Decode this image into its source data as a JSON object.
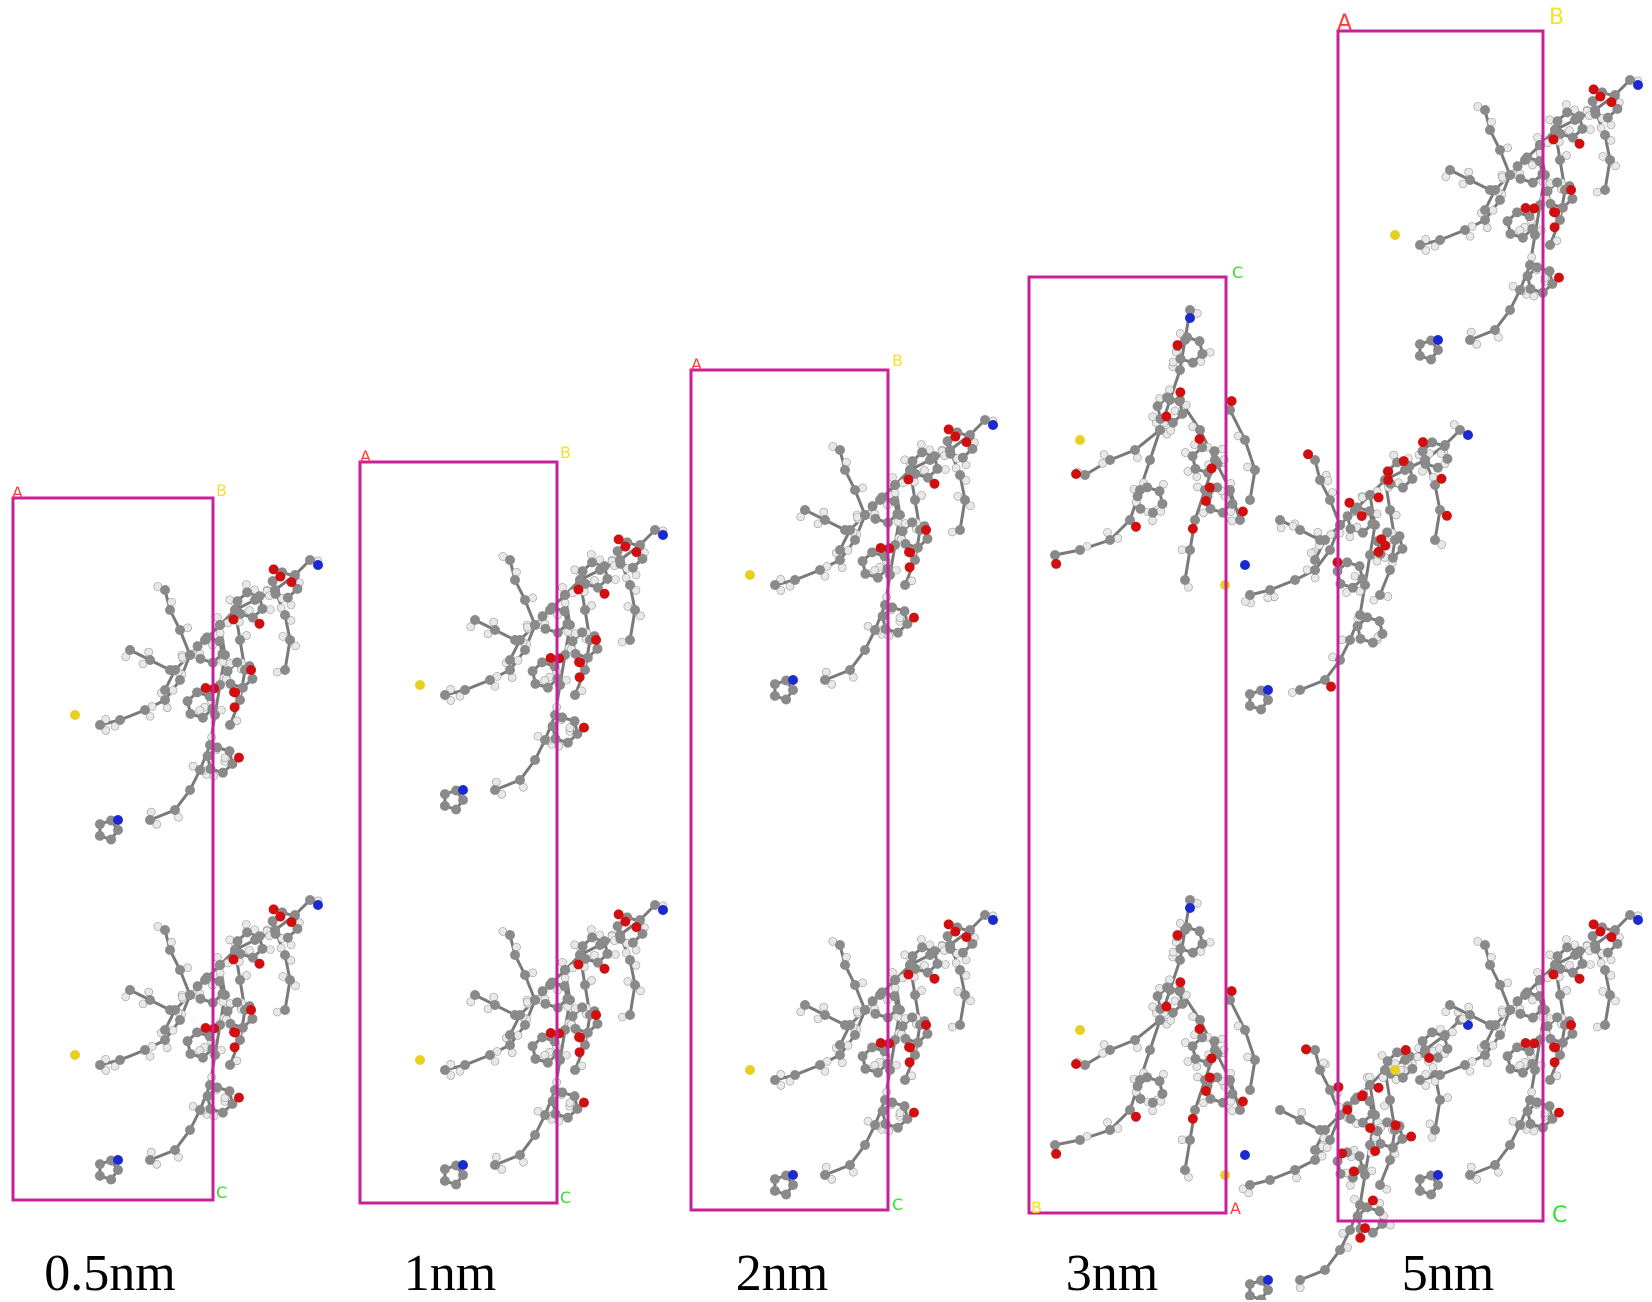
{
  "figure": {
    "panels": [
      {
        "label": "0.5nm",
        "corner_labels": {
          "top_left": "A",
          "top_right": "B",
          "bottom_right": "C"
        },
        "molecule_copies": 2
      },
      {
        "label": "1nm",
        "corner_labels": {
          "top_left": "A",
          "top_right": "B",
          "bottom_right": "C"
        },
        "molecule_copies": 2
      },
      {
        "label": "2nm",
        "corner_labels": {
          "top_left": "A",
          "top_right": "B",
          "bottom_right": "C"
        },
        "molecule_copies": 2
      },
      {
        "label": "3nm",
        "corner_labels": {
          "top_right": "C",
          "bottom_left": "B",
          "bottom_right": "A"
        },
        "molecule_copies": 2
      },
      {
        "label": "5nm",
        "corner_labels": {
          "top_left": "A",
          "top_right": "B",
          "bottom_right": "C"
        },
        "molecule_copies": 2
      }
    ],
    "colors": {
      "cell_border": "#c8209a",
      "axis_a": "#ff3b3b",
      "axis_b": "#f5e12a",
      "axis_c": "#33e033",
      "carbon": "#8a8a8a",
      "oxygen": "#d01010",
      "hydrogen": "#e8e8e8",
      "nitrogen": "#1a2ad0",
      "sulfur": "#e8d020",
      "bond": "#7a7a7a"
    }
  }
}
